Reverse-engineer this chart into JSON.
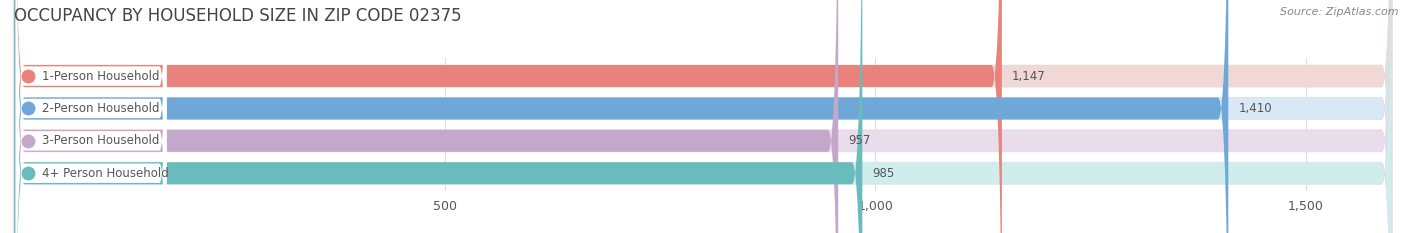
{
  "title": "OCCUPANCY BY HOUSEHOLD SIZE IN ZIP CODE 02375",
  "source": "Source: ZipAtlas.com",
  "categories": [
    "1-Person Household",
    "2-Person Household",
    "3-Person Household",
    "4+ Person Household"
  ],
  "values": [
    1147,
    1410,
    957,
    985
  ],
  "bar_colors": [
    "#e8827a",
    "#6fa8d8",
    "#c4a8cc",
    "#6abcbc"
  ],
  "bg_colors": [
    "#f0d8d5",
    "#d8e8f5",
    "#e8dced",
    "#d0eded"
  ],
  "label_bg": "#ffffff",
  "label_text_color": "#555555",
  "value_text_color": "#555555",
  "title_color": "#444444",
  "source_color": "#888888",
  "background_color": "#ffffff",
  "grid_color": "#dddddd",
  "xmin": 0,
  "xmax": 1600,
  "xticks": [
    500,
    1000,
    1500
  ],
  "title_fontsize": 12,
  "source_fontsize": 8,
  "label_fontsize": 8.5,
  "value_fontsize": 8.5,
  "tick_fontsize": 9
}
